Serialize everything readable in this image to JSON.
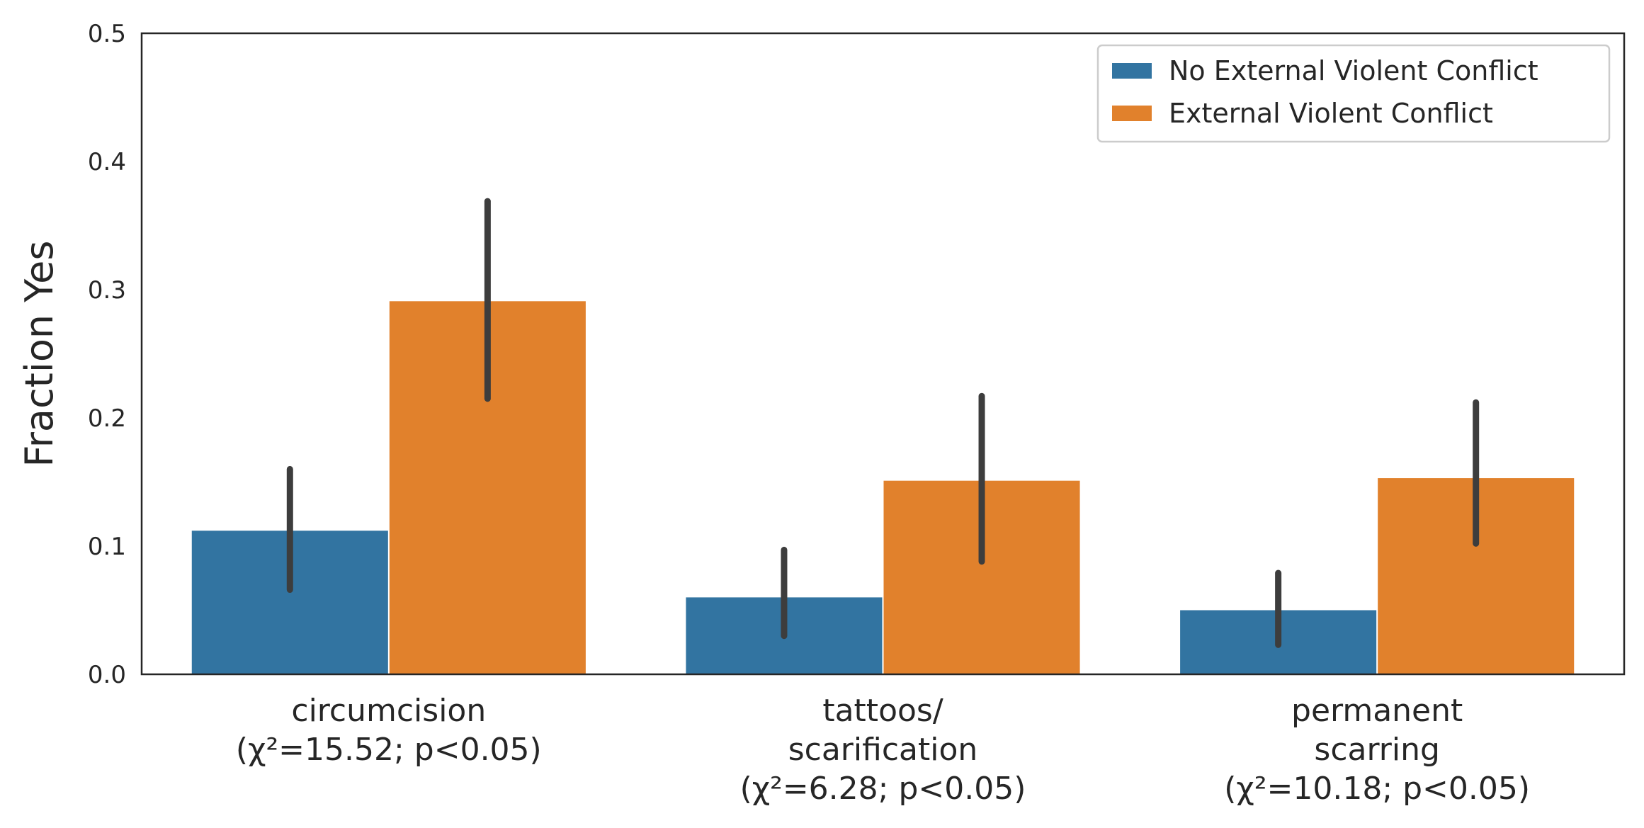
{
  "chart_data": {
    "type": "bar",
    "title": "",
    "xlabel": "",
    "ylabel": "Fraction Yes",
    "ylim": [
      0,
      0.5
    ],
    "yticks": [
      "0.0",
      "0.1",
      "0.2",
      "0.3",
      "0.4",
      "0.5"
    ],
    "grid": false,
    "legend_position": "top-right",
    "categories": [
      [
        "circumcision",
        "(χ²=15.52; p<0.05)"
      ],
      [
        "tattoos/",
        "scarification",
        "(χ²=6.28; p<0.05)"
      ],
      [
        "permanent",
        "scarring",
        "(χ²=10.18; p<0.05)"
      ]
    ],
    "series": [
      {
        "name": "No External Violent Conflict",
        "color": "#3274a1",
        "values": [
          0.112,
          0.06,
          0.05
        ],
        "ci_low": [
          0.066,
          0.03,
          0.023
        ],
        "ci_high": [
          0.16,
          0.097,
          0.079
        ]
      },
      {
        "name": "External Violent Conflict",
        "color": "#e1812c",
        "values": [
          0.291,
          0.151,
          0.153
        ],
        "ci_low": [
          0.215,
          0.088,
          0.102
        ],
        "ci_high": [
          0.369,
          0.217,
          0.212
        ]
      }
    ],
    "errorbar_color": "#3d3d3d"
  }
}
